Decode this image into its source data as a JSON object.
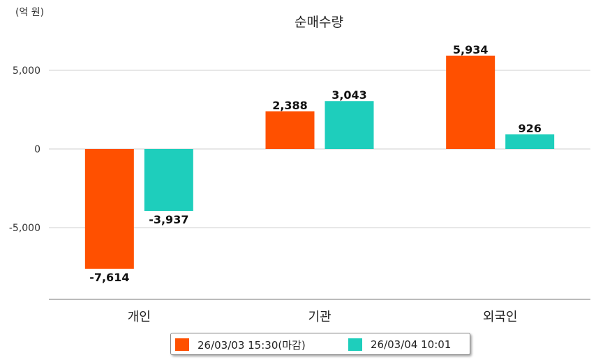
{
  "chart_data": {
    "type": "bar",
    "title": "순매수량",
    "unit_label": "(억 원)",
    "categories": [
      "개인",
      "기관",
      "외국인"
    ],
    "series": [
      {
        "name": "26/03/03 15:30(마감)",
        "color": "#ff5000",
        "values": [
          -7614,
          2388,
          5934
        ]
      },
      {
        "name": "26/03/04 10:01",
        "color": "#1ecebc",
        "values": [
          -3937,
          3043,
          926
        ]
      }
    ],
    "data_labels": [
      [
        "-7,614",
        "2,388",
        "5,934"
      ],
      [
        "-3,937",
        "3,043",
        "926"
      ]
    ],
    "y_ticks": [
      5000,
      0,
      -5000
    ],
    "y_tick_labels": [
      "5,000",
      "0",
      "-5,000"
    ],
    "ylim": [
      -9500,
      7000
    ],
    "grid": true,
    "legend_position": "bottom"
  }
}
